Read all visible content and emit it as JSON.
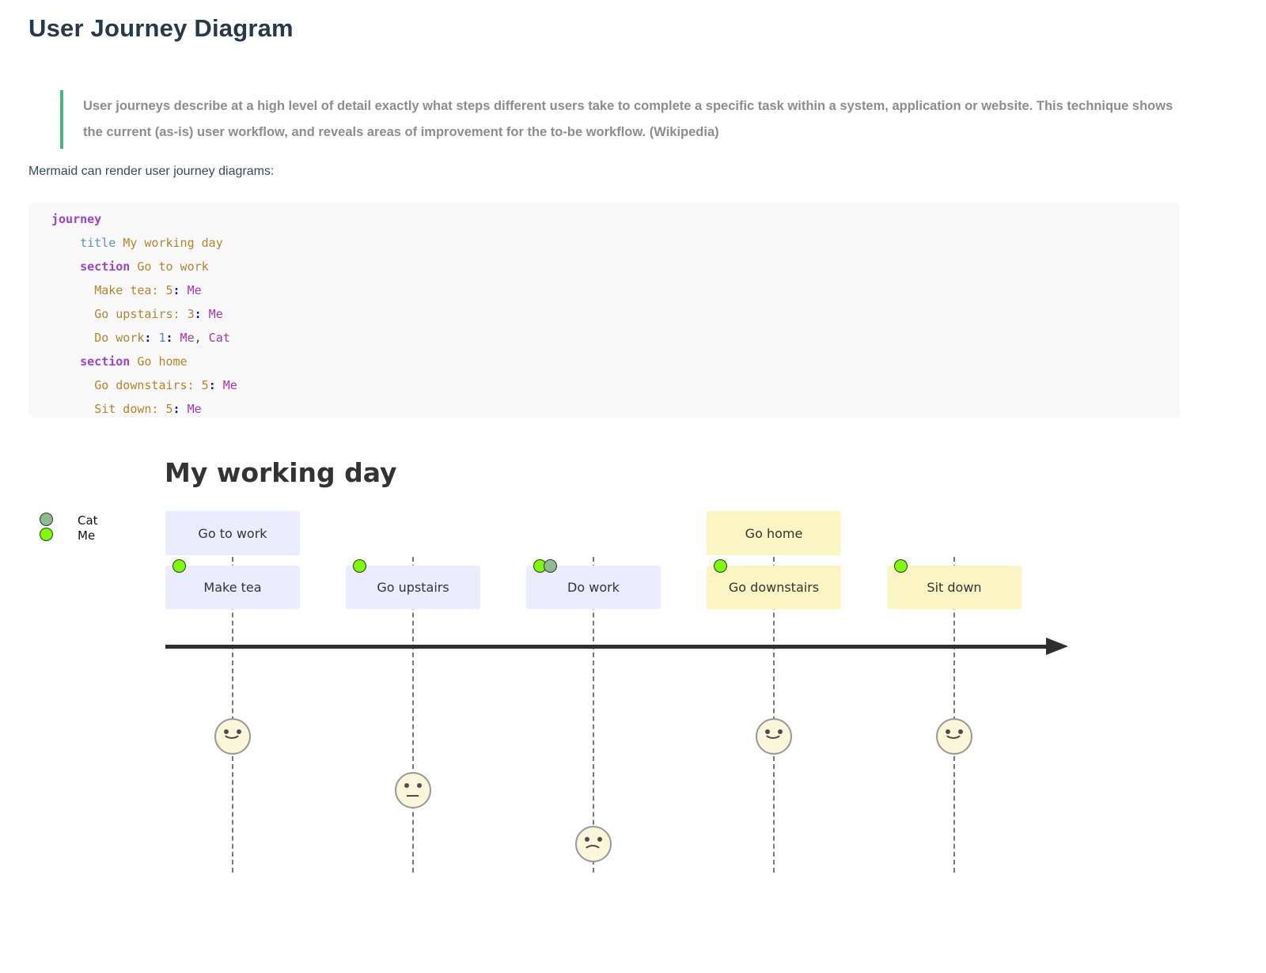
{
  "page": {
    "title": "User Journey Diagram",
    "quote": "User journeys describe at a high level of detail exactly what steps different users take to complete a specific task within a system, application or website. This technique shows\nthe current (as-is) user workflow, and reveals areas of improvement for the to-be workflow. (Wikipedia)",
    "quote_accent": "#42b983",
    "intro": "Mermaid can render user journey diagrams:"
  },
  "code": {
    "background": "#f8f8f8",
    "token_colors": {
      "kw": "#9843c9",
      "attr": "#5b93b8",
      "str": "#b1862b",
      "num": "#4d87c3",
      "colon": "#16169c",
      "actor": "#a336ad",
      "plain": "#383a42"
    },
    "lines": [
      [
        [
          "kw",
          "journey"
        ]
      ],
      [
        [
          "plain",
          "    "
        ],
        [
          "attr",
          "title"
        ],
        [
          "plain",
          " "
        ],
        [
          "str",
          "My working day"
        ]
      ],
      [
        [
          "plain",
          "    "
        ],
        [
          "kw",
          "section"
        ],
        [
          "plain",
          " "
        ],
        [
          "str",
          "Go to work"
        ]
      ],
      [
        [
          "plain",
          "      "
        ],
        [
          "str",
          "Make tea: 5"
        ],
        [
          "colon",
          ":"
        ],
        [
          "actor",
          " Me"
        ]
      ],
      [
        [
          "plain",
          "      "
        ],
        [
          "str",
          "Go upstairs: 3"
        ],
        [
          "colon",
          ":"
        ],
        [
          "actor",
          " Me"
        ]
      ],
      [
        [
          "plain",
          "      "
        ],
        [
          "str",
          "Do work"
        ],
        [
          "colon",
          ":"
        ],
        [
          "num",
          " 1"
        ],
        [
          "colon",
          ":"
        ],
        [
          "actor",
          " Me"
        ],
        [
          "plain",
          ","
        ],
        [
          "actor",
          " Cat"
        ]
      ],
      [
        [
          "plain",
          "    "
        ],
        [
          "kw",
          "section"
        ],
        [
          "plain",
          " "
        ],
        [
          "str",
          "Go home"
        ]
      ],
      [
        [
          "plain",
          "      "
        ],
        [
          "str",
          "Go downstairs: 5"
        ],
        [
          "colon",
          ":"
        ],
        [
          "actor",
          " Me"
        ]
      ],
      [
        [
          "plain",
          "      "
        ],
        [
          "str",
          "Sit down: 5"
        ],
        [
          "colon",
          ":"
        ],
        [
          "actor",
          " Me"
        ]
      ]
    ]
  },
  "diagram": {
    "title": "My working day",
    "actors": [
      {
        "name": "Cat",
        "color": "#8FBC8F"
      },
      {
        "name": "Me",
        "color": "#7CFC00"
      }
    ],
    "sections": [
      {
        "name": "Go to work",
        "fill": "#ECECFF"
      },
      {
        "name": "Go home",
        "fill": "#FBF5C4"
      }
    ],
    "tasks": [
      {
        "label": "Make tea",
        "score": 5,
        "actors": [
          "Me"
        ],
        "section": 0
      },
      {
        "label": "Go upstairs",
        "score": 3,
        "actors": [
          "Me"
        ],
        "section": 0
      },
      {
        "label": "Do work",
        "score": 1,
        "actors": [
          "Me",
          "Cat"
        ],
        "section": 0
      },
      {
        "label": "Go downstairs",
        "score": 5,
        "actors": [
          "Me"
        ],
        "section": 1
      },
      {
        "label": "Sit down",
        "score": 5,
        "actors": [
          "Me"
        ],
        "section": 1
      }
    ],
    "section_start_task": [
      0,
      3
    ]
  }
}
